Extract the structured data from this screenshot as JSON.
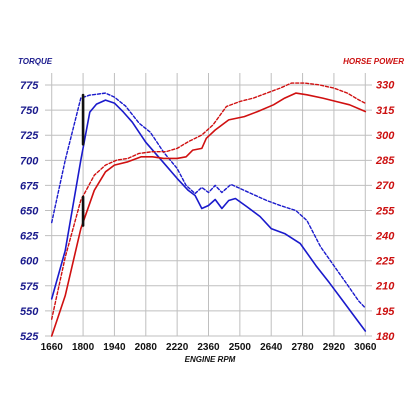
{
  "chart_data": {
    "type": "line",
    "xlabel": "ENGINE RPM",
    "ylabel_left": "TORQUE",
    "ylabel_right": "HORSE POWER",
    "x_ticks": [
      "1660",
      "1800",
      "1940",
      "2080",
      "2220",
      "2360",
      "2500",
      "2640",
      "2780",
      "2920",
      "3060"
    ],
    "y_left_ticks": [
      "525",
      "550",
      "575",
      "600",
      "625",
      "650",
      "675",
      "700",
      "725",
      "750",
      "775"
    ],
    "y_right_ticks": [
      "180",
      "195",
      "210",
      "225",
      "240",
      "255",
      "270",
      "285",
      "300",
      "315",
      "330"
    ],
    "xlim": [
      1630,
      3090
    ],
    "ylim_left": [
      525,
      787
    ],
    "ylim_right": [
      180,
      337
    ],
    "grid": true,
    "series": [
      {
        "axis": "left",
        "color": "#1a1acc",
        "style": "solid",
        "points": [
          [
            1660,
            562
          ],
          [
            1720,
            610
          ],
          [
            1790,
            700
          ],
          [
            1830,
            748
          ],
          [
            1860,
            756
          ],
          [
            1900,
            760
          ],
          [
            1940,
            757
          ],
          [
            1980,
            748
          ],
          [
            2020,
            738
          ],
          [
            2080,
            718
          ],
          [
            2150,
            700
          ],
          [
            2220,
            682
          ],
          [
            2270,
            670
          ],
          [
            2300,
            665
          ],
          [
            2330,
            652
          ],
          [
            2360,
            655
          ],
          [
            2390,
            661
          ],
          [
            2420,
            652
          ],
          [
            2450,
            660
          ],
          [
            2480,
            662
          ],
          [
            2530,
            654
          ],
          [
            2590,
            644
          ],
          [
            2640,
            632
          ],
          [
            2700,
            627
          ],
          [
            2770,
            617
          ],
          [
            2840,
            595
          ],
          [
            2900,
            578
          ],
          [
            2960,
            560
          ],
          [
            3000,
            548
          ],
          [
            3060,
            530
          ]
        ]
      },
      {
        "axis": "left",
        "color": "#1a1acc",
        "style": "dashed",
        "points": [
          [
            1660,
            638
          ],
          [
            1720,
            700
          ],
          [
            1790,
            762
          ],
          [
            1830,
            765
          ],
          [
            1900,
            767
          ],
          [
            1940,
            763
          ],
          [
            1990,
            754
          ],
          [
            2050,
            737
          ],
          [
            2100,
            728
          ],
          [
            2160,
            708
          ],
          [
            2220,
            692
          ],
          [
            2260,
            675
          ],
          [
            2300,
            667
          ],
          [
            2330,
            673
          ],
          [
            2360,
            668
          ],
          [
            2390,
            675
          ],
          [
            2420,
            668
          ],
          [
            2460,
            676
          ],
          [
            2500,
            672
          ],
          [
            2560,
            666
          ],
          [
            2620,
            660
          ],
          [
            2680,
            655
          ],
          [
            2750,
            650
          ],
          [
            2800,
            640
          ],
          [
            2860,
            614
          ],
          [
            2920,
            595
          ],
          [
            2980,
            576
          ],
          [
            3030,
            560
          ],
          [
            3060,
            553
          ]
        ]
      },
      {
        "axis": "right",
        "color": "#d01010",
        "style": "solid",
        "points": [
          [
            1660,
            180
          ],
          [
            1720,
            204
          ],
          [
            1790,
            244
          ],
          [
            1850,
            267
          ],
          [
            1900,
            278
          ],
          [
            1940,
            282
          ],
          [
            2000,
            284
          ],
          [
            2060,
            287
          ],
          [
            2110,
            287
          ],
          [
            2160,
            286
          ],
          [
            2220,
            286
          ],
          [
            2260,
            287
          ],
          [
            2290,
            291
          ],
          [
            2330,
            292
          ],
          [
            2350,
            298
          ],
          [
            2390,
            303
          ],
          [
            2450,
            309
          ],
          [
            2520,
            311
          ],
          [
            2580,
            314
          ],
          [
            2650,
            318
          ],
          [
            2700,
            322
          ],
          [
            2750,
            325
          ],
          [
            2800,
            324
          ],
          [
            2870,
            322
          ],
          [
            2930,
            320
          ],
          [
            2990,
            318
          ],
          [
            3060,
            314
          ]
        ]
      },
      {
        "axis": "right",
        "color": "#d01010",
        "style": "dashed",
        "points": [
          [
            1660,
            190
          ],
          [
            1720,
            227
          ],
          [
            1790,
            261
          ],
          [
            1850,
            276
          ],
          [
            1900,
            282
          ],
          [
            1950,
            285
          ],
          [
            2000,
            286
          ],
          [
            2050,
            289
          ],
          [
            2110,
            290
          ],
          [
            2170,
            290
          ],
          [
            2220,
            292
          ],
          [
            2270,
            296
          ],
          [
            2330,
            300
          ],
          [
            2380,
            306
          ],
          [
            2440,
            317
          ],
          [
            2500,
            320
          ],
          [
            2560,
            322
          ],
          [
            2620,
            325
          ],
          [
            2680,
            328
          ],
          [
            2730,
            331
          ],
          [
            2790,
            331
          ],
          [
            2850,
            330
          ],
          [
            2920,
            328
          ],
          [
            2980,
            325
          ],
          [
            3030,
            321
          ],
          [
            3060,
            319
          ]
        ]
      }
    ],
    "annotations": [
      {
        "label": "tq-peak-bar",
        "x": 1800,
        "from": 716,
        "to": 765,
        "axis": "left"
      },
      {
        "label": "hp-bar",
        "x": 1800,
        "from": 246,
        "to": 263,
        "axis": "right"
      }
    ]
  }
}
